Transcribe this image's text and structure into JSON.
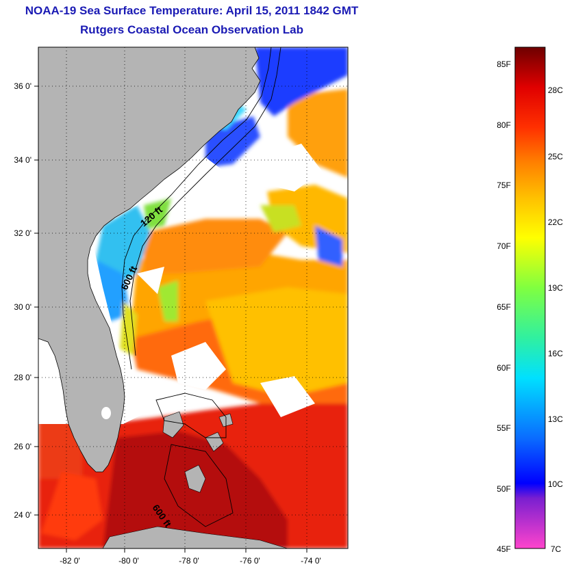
{
  "title": "NOAA-19 Sea Surface Temperature:  April 15, 2011 1842 GMT",
  "subtitle": "Rutgers Coastal Ocean Observation Lab",
  "map": {
    "lat_ticks": [
      "36 0'",
      "34 0'",
      "32 0'",
      "30 0'",
      "28 0'",
      "26 0'",
      "24 0'"
    ],
    "lon_ticks": [
      "-82 0'",
      "-80 0'",
      "-78 0'",
      "-76 0'",
      "-74 0'"
    ],
    "lat_range": [
      23,
      37
    ],
    "lon_range": [
      -83,
      -73
    ],
    "contour_labels": [
      "120 ft",
      "600 ft",
      "600 ft"
    ],
    "land_color": "#b4b4b4",
    "cloud_color": "#ffffff"
  },
  "colorbar": {
    "f_labels": [
      "85F",
      "80F",
      "75F",
      "70F",
      "65F",
      "60F",
      "55F",
      "50F",
      "45F"
    ],
    "c_labels": [
      "28C",
      "25C",
      "22C",
      "19C",
      "16C",
      "13C",
      "10C",
      "7C"
    ],
    "stops": [
      "#ff44cc",
      "#7a1fd0",
      "#0000ff",
      "#0a6cff",
      "#00e0ff",
      "#30f0a0",
      "#80ff40",
      "#ffff00",
      "#ffc000",
      "#ff8000",
      "#ff3000",
      "#e00000",
      "#6e0000"
    ]
  }
}
